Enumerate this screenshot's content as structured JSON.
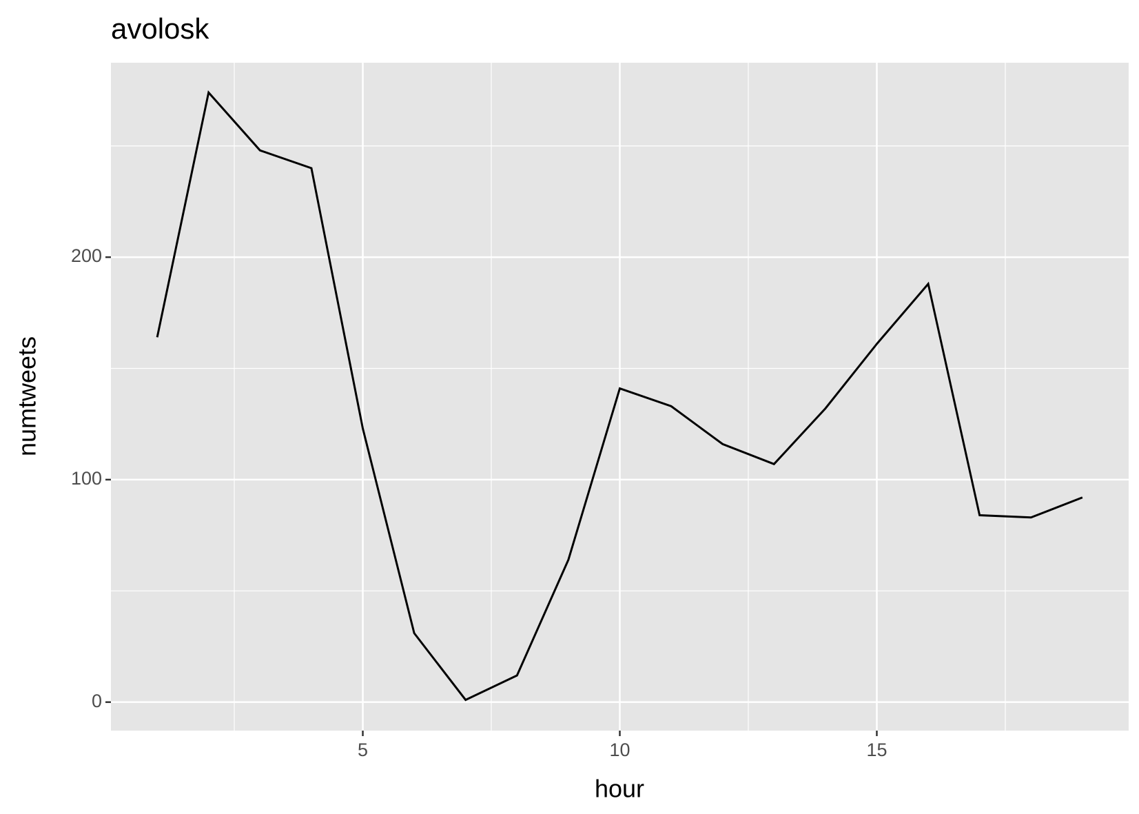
{
  "chart_data": {
    "type": "line",
    "title": "avolosk",
    "x_label": "hour",
    "y_label": "numtweets",
    "x": [
      1,
      2,
      3,
      4,
      5,
      6,
      7,
      8,
      9,
      10,
      11,
      12,
      13,
      14,
      15,
      16,
      17,
      18,
      19
    ],
    "series": [
      {
        "color": "#000000",
        "values": [
          164,
          274,
          248,
          240,
          123,
          31,
          1,
          12,
          64,
          141,
          133,
          116,
          107,
          132,
          161,
          188,
          84,
          83,
          92
        ]
      }
    ],
    "xlim": [
      0.1,
      19.9
    ],
    "ylim": [
      -12.8,
      287.4
    ],
    "xticks": [
      5,
      10,
      15
    ],
    "yticks": [
      0,
      100,
      200
    ],
    "xminorticks": [
      2.5,
      7.5,
      12.5,
      17.5
    ],
    "yminorticks": [
      50,
      150,
      250
    ],
    "grid": true
  }
}
